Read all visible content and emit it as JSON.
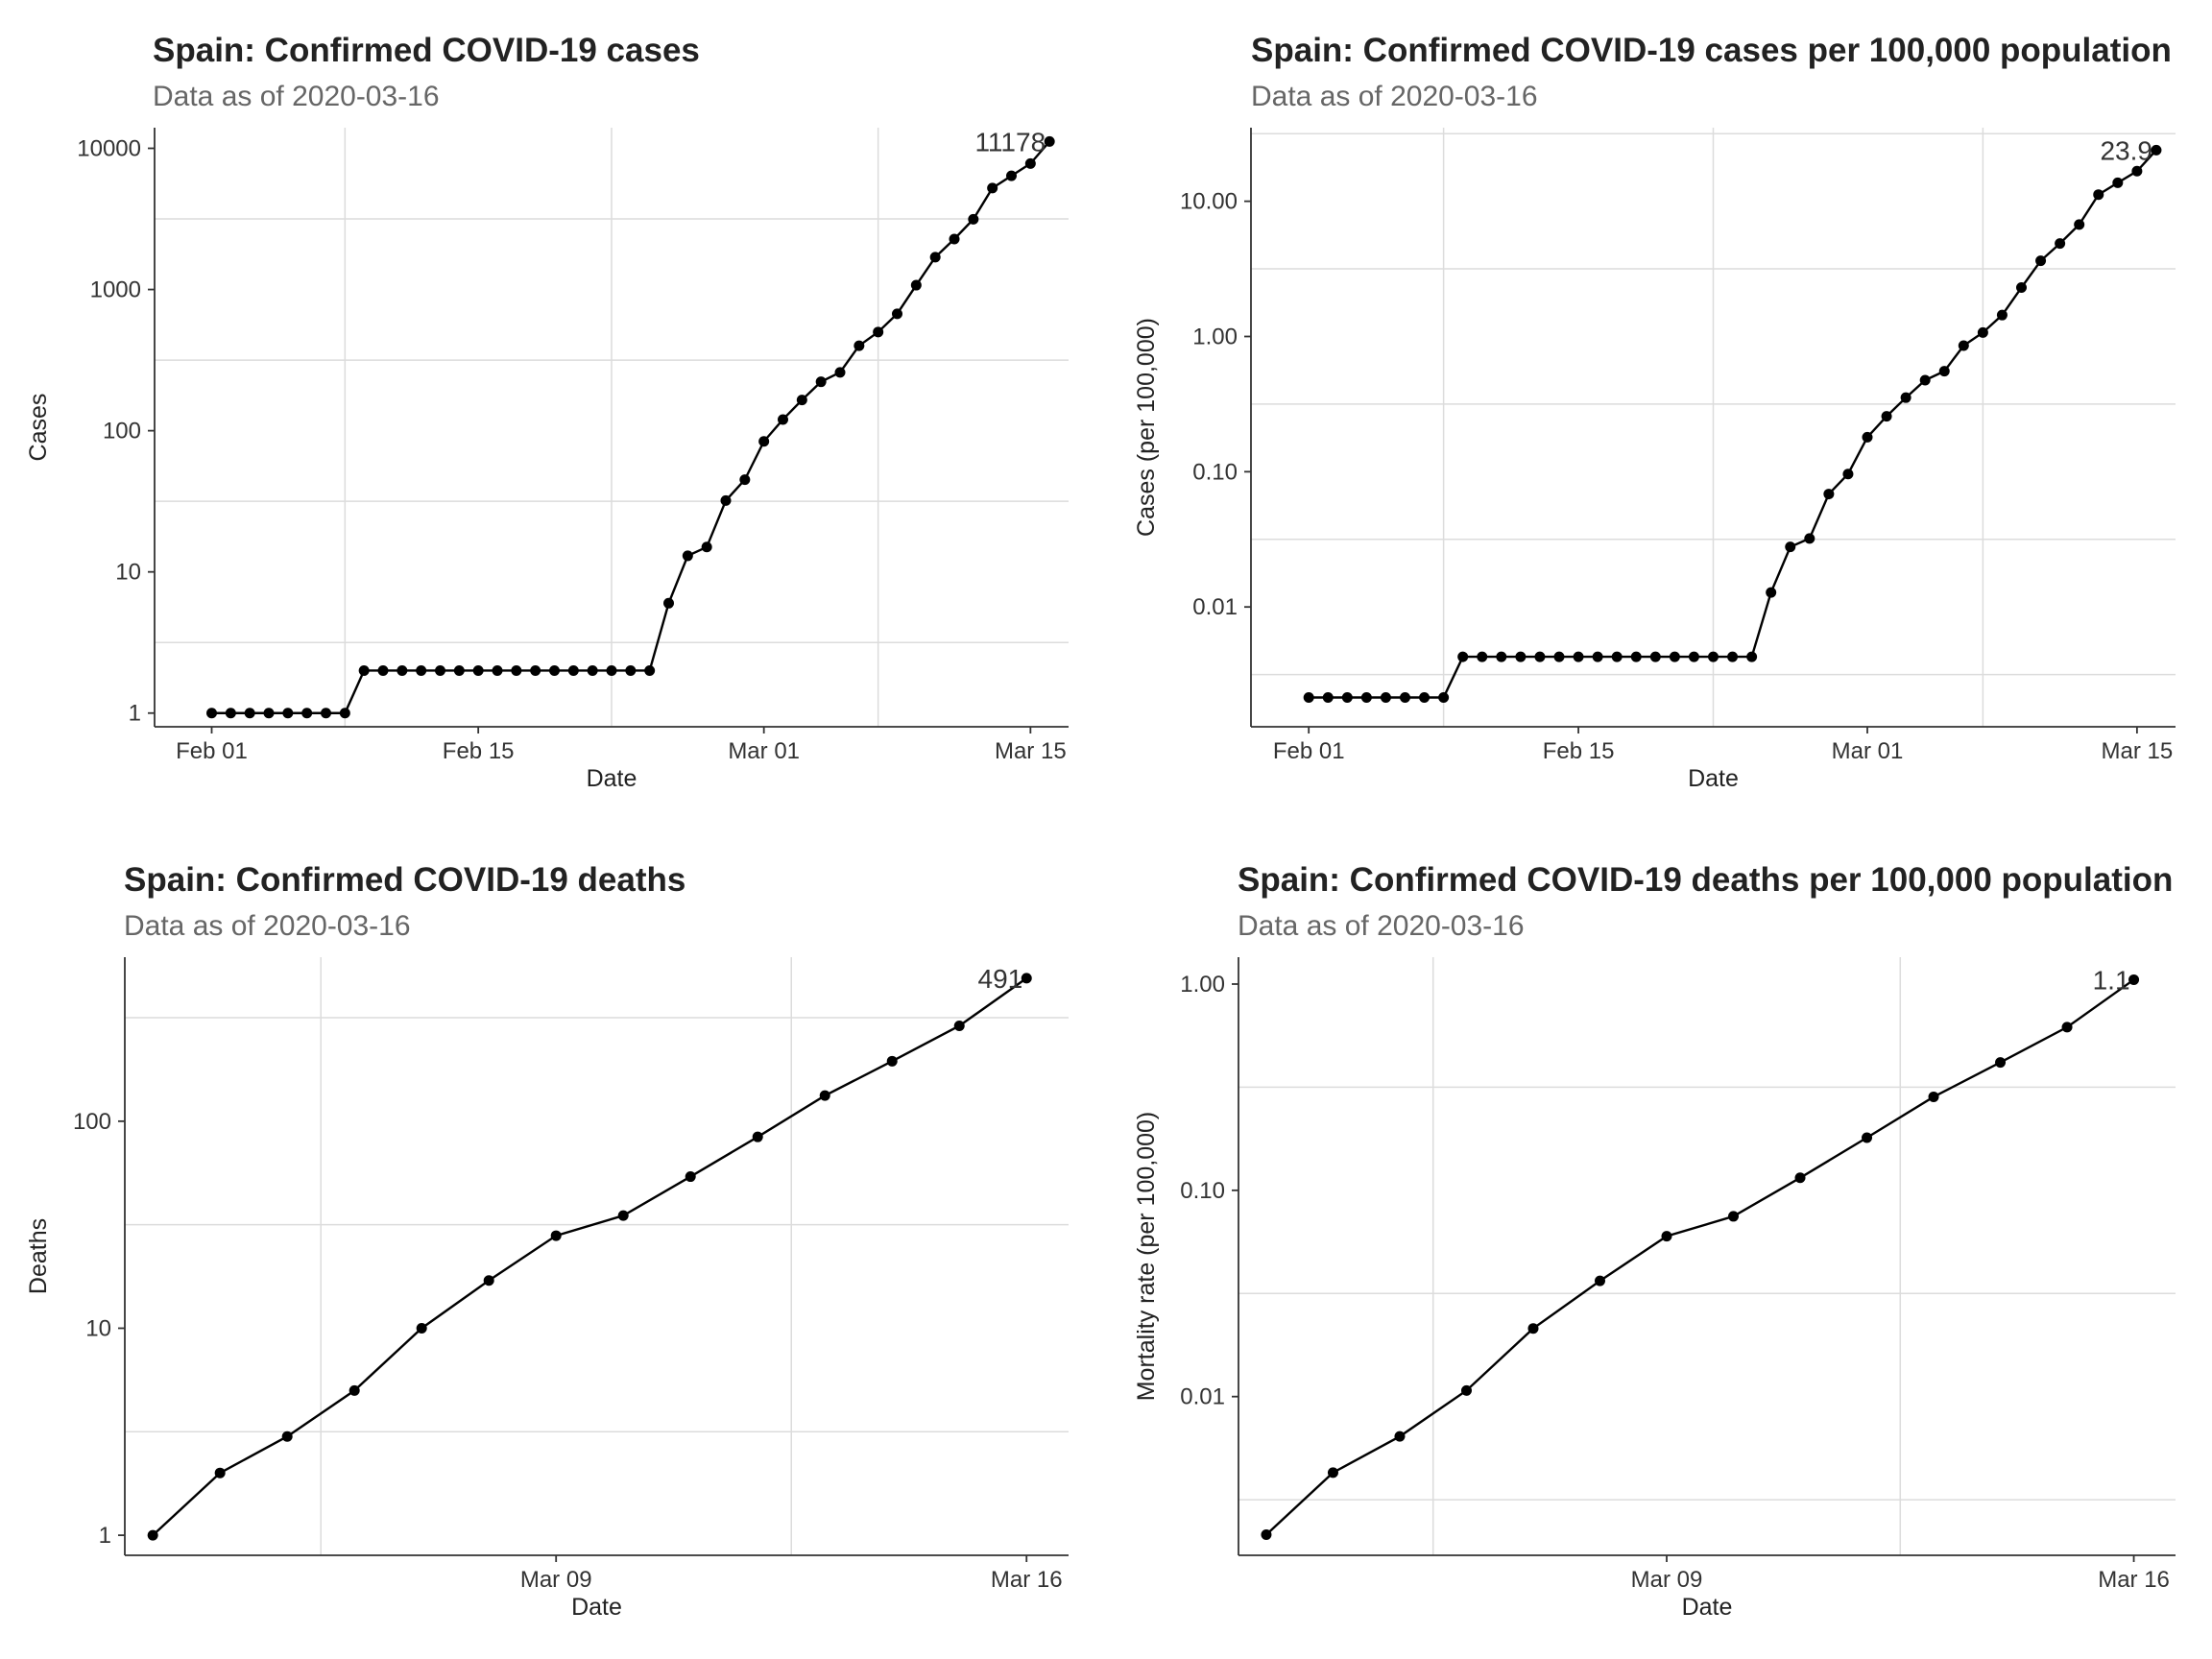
{
  "chart_data": [
    {
      "id": "cases",
      "type": "line",
      "title": "Spain: Confirmed COVID-19 cases",
      "subtitle": "Data as of 2020-03-16",
      "xlabel": "Date",
      "ylabel": "Cases",
      "y_scale": "log10",
      "ylim": [
        0.8,
        14000
      ],
      "xlim": [
        "2020-01-29",
        "2020-03-17"
      ],
      "grid": true,
      "x_ticks": [
        {
          "date": "2020-02-01",
          "label": "Feb 01"
        },
        {
          "date": "2020-02-15",
          "label": "Feb 15"
        },
        {
          "date": "2020-03-01",
          "label": "Mar 01"
        },
        {
          "date": "2020-03-15",
          "label": "Mar 15"
        }
      ],
      "y_ticks": [
        {
          "value": 1,
          "label": "1"
        },
        {
          "value": 10,
          "label": "10"
        },
        {
          "value": 100,
          "label": "100"
        },
        {
          "value": 1000,
          "label": "1000"
        },
        {
          "value": 10000,
          "label": "10000"
        }
      ],
      "end_label": "11178",
      "start_date": "2020-02-01",
      "values": [
        1,
        1,
        1,
        1,
        1,
        1,
        1,
        1,
        2,
        2,
        2,
        2,
        2,
        2,
        2,
        2,
        2,
        2,
        2,
        2,
        2,
        2,
        2,
        2,
        6,
        13,
        15,
        32,
        45,
        84,
        120,
        165,
        222,
        259,
        400,
        500,
        673,
        1073,
        1695,
        2277,
        3146,
        5232,
        6391,
        7798,
        11178
      ]
    },
    {
      "id": "cases_per_100k",
      "type": "line",
      "title": "Spain: Confirmed COVID-19 cases per 100,000 population",
      "subtitle": "Data as of 2020-03-16",
      "xlabel": "Date",
      "ylabel": "Cases (per 100,000)",
      "y_scale": "log10",
      "ylim": [
        0.0013,
        35
      ],
      "xlim": [
        "2020-01-29",
        "2020-03-17"
      ],
      "grid": true,
      "x_ticks": [
        {
          "date": "2020-02-01",
          "label": "Feb 01"
        },
        {
          "date": "2020-02-15",
          "label": "Feb 15"
        },
        {
          "date": "2020-03-01",
          "label": "Mar 01"
        },
        {
          "date": "2020-03-15",
          "label": "Mar 15"
        }
      ],
      "y_ticks": [
        {
          "value": 0.01,
          "label": "0.01"
        },
        {
          "value": 0.1,
          "label": "0.10"
        },
        {
          "value": 1,
          "label": "1.00"
        },
        {
          "value": 10,
          "label": "10.00"
        }
      ],
      "end_label": "23.9",
      "start_date": "2020-02-01",
      "values": [
        0.00214,
        0.00214,
        0.00214,
        0.00214,
        0.00214,
        0.00214,
        0.00214,
        0.00214,
        0.00428,
        0.00428,
        0.00428,
        0.00428,
        0.00428,
        0.00428,
        0.00428,
        0.00428,
        0.00428,
        0.00428,
        0.00428,
        0.00428,
        0.00428,
        0.00428,
        0.00428,
        0.00428,
        0.0128,
        0.0278,
        0.0321,
        0.0684,
        0.0962,
        0.18,
        0.257,
        0.353,
        0.475,
        0.554,
        0.856,
        1.07,
        1.44,
        2.3,
        3.63,
        4.87,
        6.73,
        11.2,
        13.7,
        16.7,
        23.9
      ]
    },
    {
      "id": "deaths",
      "type": "line",
      "title": "Spain: Confirmed COVID-19 deaths",
      "subtitle": "Data as of 2020-03-16",
      "xlabel": "Date",
      "ylabel": "Deaths",
      "y_scale": "log10",
      "ylim": [
        0.8,
        620
      ],
      "xlim": [
        "2020-03-02 14:00",
        "2020-03-16 15:00"
      ],
      "grid": true,
      "x_ticks": [
        {
          "date": "2020-03-09",
          "label": "Mar 09"
        },
        {
          "date": "2020-03-16",
          "label": "Mar 16"
        }
      ],
      "y_ticks": [
        {
          "value": 1,
          "label": "1"
        },
        {
          "value": 10,
          "label": "10"
        },
        {
          "value": 100,
          "label": "100"
        }
      ],
      "end_label": "491",
      "start_date": "2020-03-03",
      "values": [
        1,
        2,
        3,
        5,
        10,
        17,
        28,
        35,
        54,
        84,
        133,
        195,
        289,
        491
      ]
    },
    {
      "id": "deaths_per_100k",
      "type": "line",
      "title": "Spain: Confirmed COVID-19 deaths per 100,000 population",
      "subtitle": "Data as of 2020-03-16",
      "xlabel": "Date",
      "ylabel": "Mortality rate (per 100,000)",
      "y_scale": "log10",
      "ylim": [
        0.0017,
        1.35
      ],
      "xlim": [
        "2020-03-02 14:00",
        "2020-03-16 15:00"
      ],
      "grid": true,
      "x_ticks": [
        {
          "date": "2020-03-09",
          "label": "Mar 09"
        },
        {
          "date": "2020-03-16",
          "label": "Mar 16"
        }
      ],
      "y_ticks": [
        {
          "value": 0.01,
          "label": "0.01"
        },
        {
          "value": 0.1,
          "label": "0.10"
        },
        {
          "value": 1,
          "label": "1.00"
        }
      ],
      "end_label": "1.1",
      "start_date": "2020-03-03",
      "values": [
        0.00214,
        0.00428,
        0.00641,
        0.0107,
        0.0214,
        0.0364,
        0.0599,
        0.0748,
        0.115,
        0.18,
        0.284,
        0.417,
        0.618,
        1.05
      ]
    }
  ]
}
